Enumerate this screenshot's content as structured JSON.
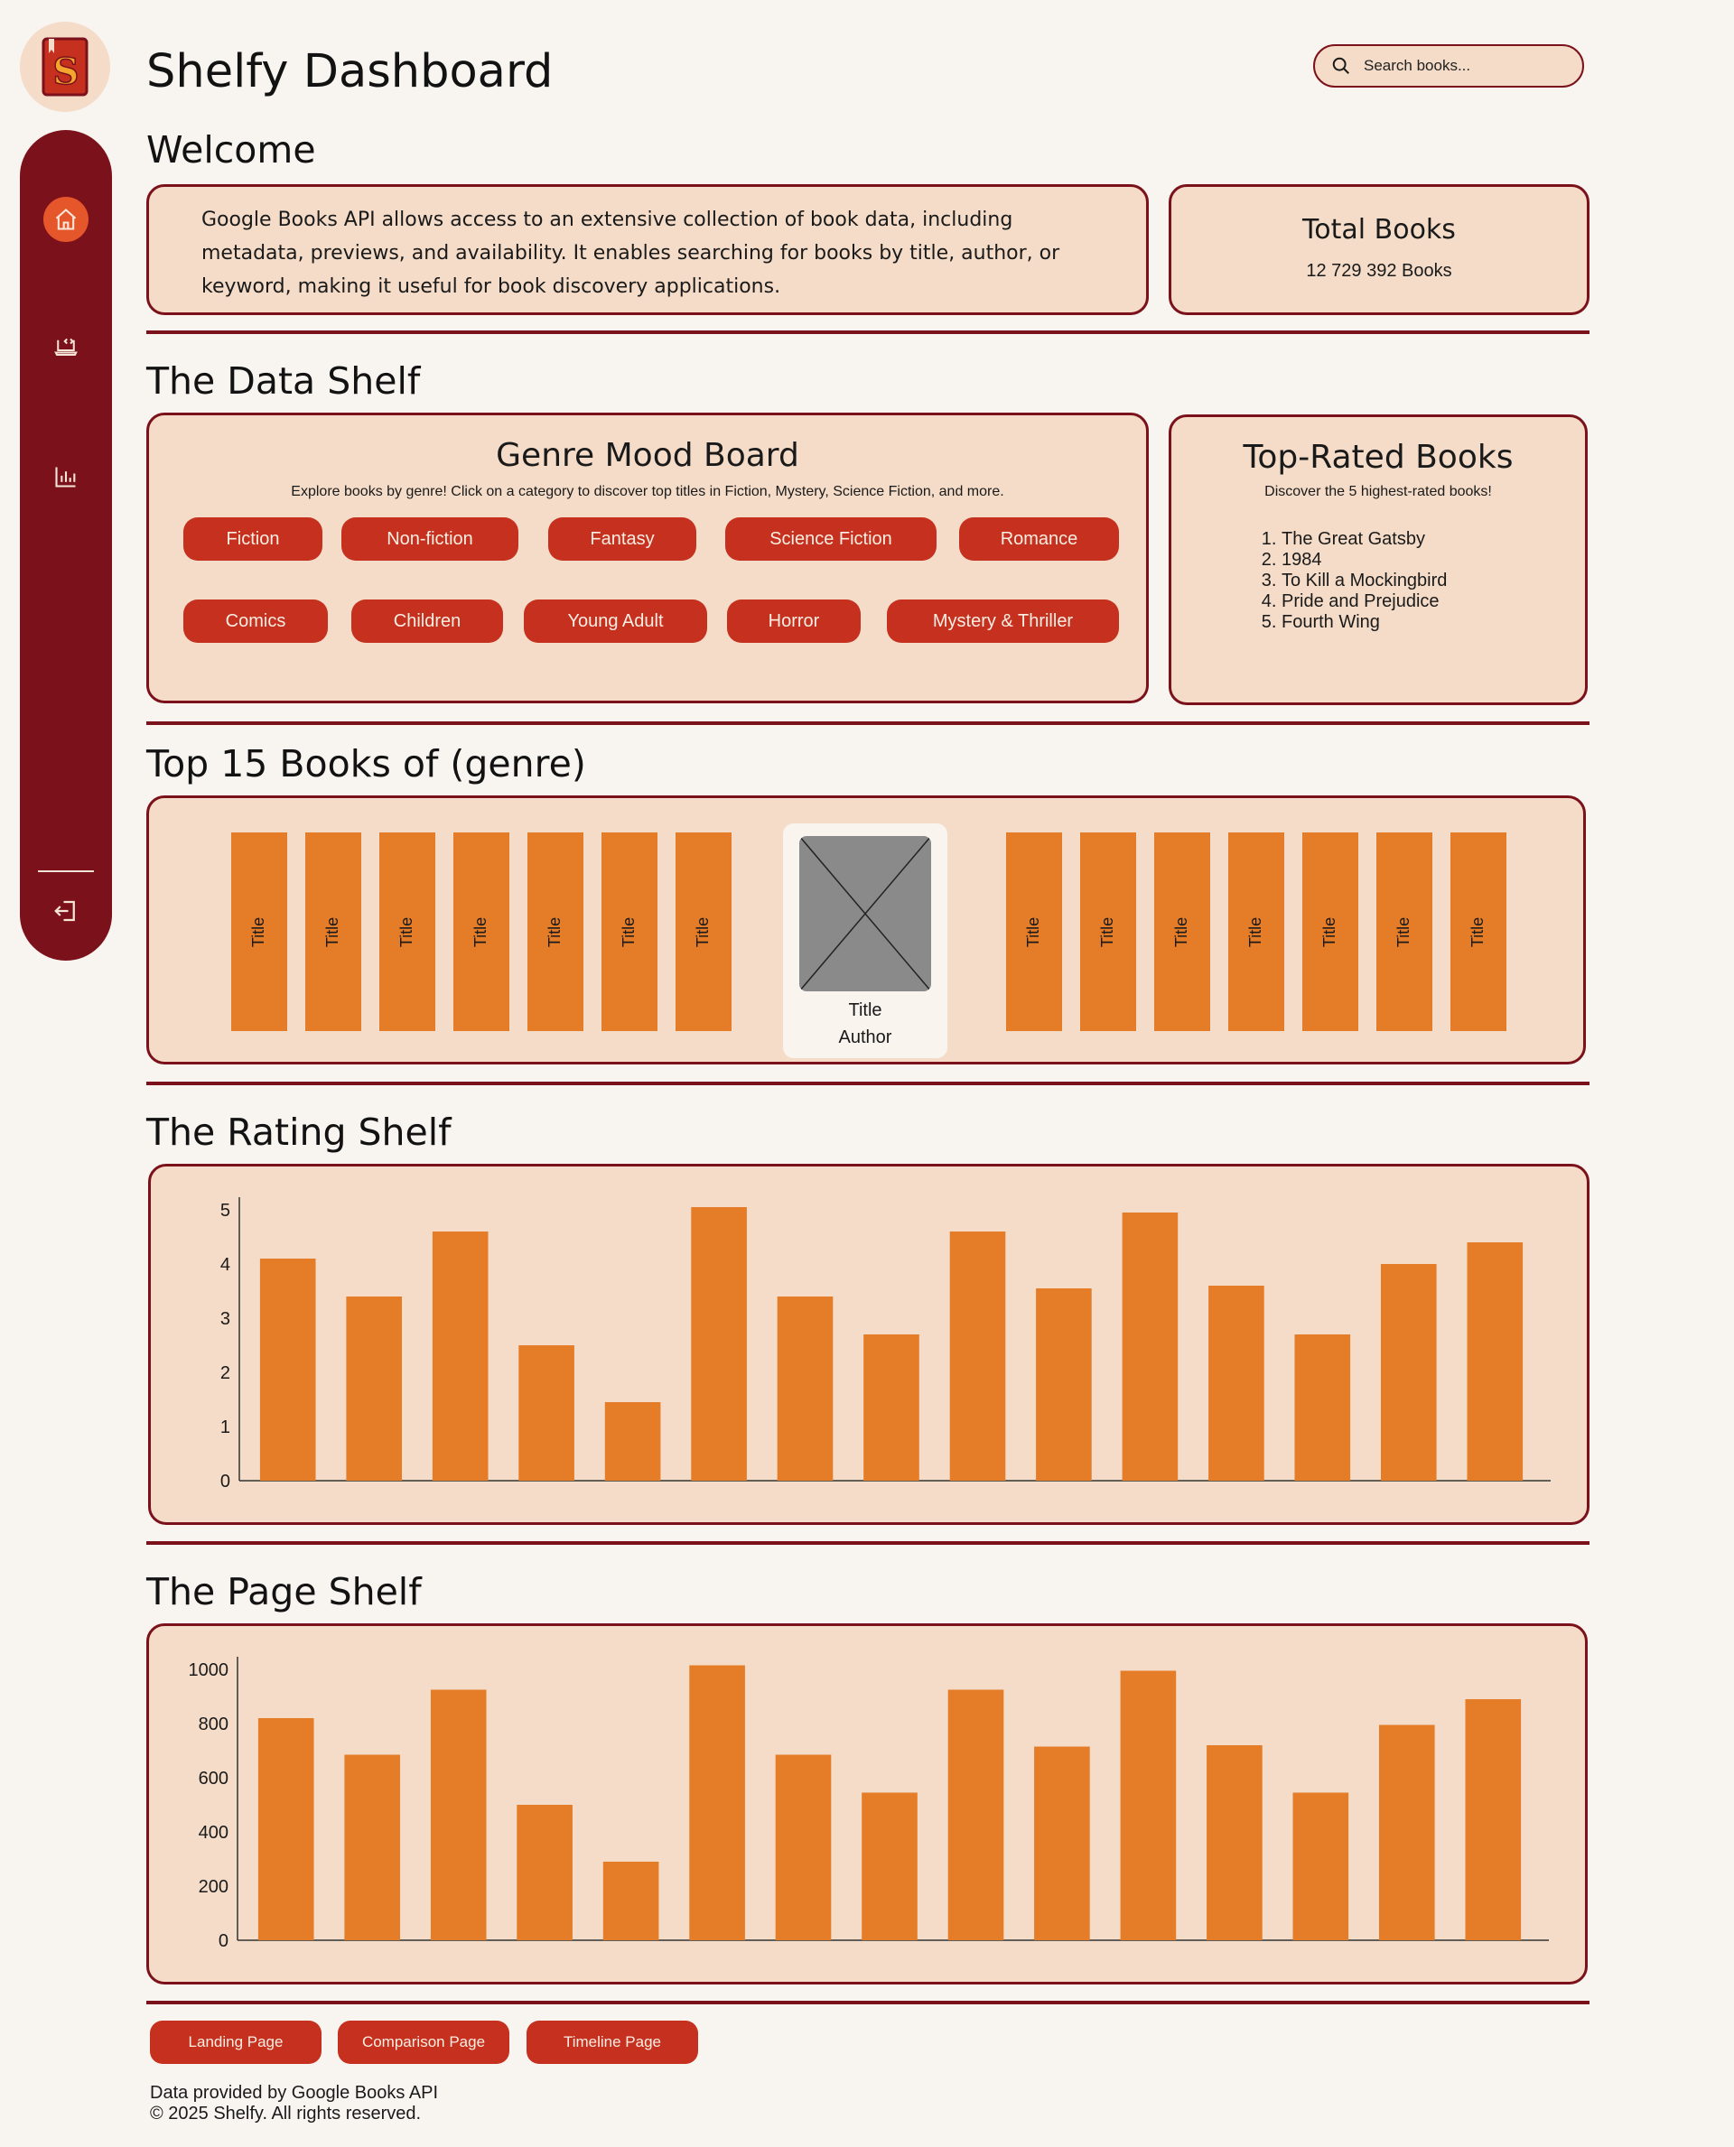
{
  "app": {
    "title": "Shelfy Dashboard",
    "logo_letter": "S",
    "search_placeholder": "Search books..."
  },
  "sidebar": {
    "items": [
      {
        "icon": "home-icon",
        "active": true
      },
      {
        "icon": "laptop-code-icon",
        "active": false
      },
      {
        "icon": "bar-chart-icon",
        "active": false
      }
    ],
    "logout_icon": "logout-icon"
  },
  "welcome": {
    "heading": "Welcome",
    "text": "Google Books API allows access to an extensive collection of book data, including metadata, previews, and availability. It enables searching for books by title, author, or keyword, making it useful for book discovery applications.",
    "total_title": "Total Books",
    "total_value": "12 729 392 Books"
  },
  "data_shelf": {
    "heading": "The Data Shelf",
    "mood_board": {
      "title": "Genre Mood Board",
      "subtitle": "Explore books by genre! Click on a category to discover top titles in Fiction, Mystery, Science Fiction, and more.",
      "genres": [
        "Fiction",
        "Non-fiction",
        "Fantasy",
        "Science Fiction",
        "Romance",
        "Comics",
        "Children",
        "Young Adult",
        "Horror",
        "Mystery & Thriller"
      ]
    },
    "top_rated": {
      "title": "Top-Rated Books",
      "subtitle": "Discover the 5 highest-rated books!",
      "books": [
        "The Great Gatsby",
        "1984",
        "To Kill a Mockingbird",
        "Pride and Prejudice",
        "Fourth Wing"
      ]
    }
  },
  "top15": {
    "heading": "Top 15 Books of (genre)",
    "spine_label": "Title",
    "feature_title": "Title",
    "feature_author": "Author"
  },
  "rating_shelf": {
    "heading": "The Rating Shelf"
  },
  "page_shelf": {
    "heading": "The Page Shelf"
  },
  "footer": {
    "links": [
      "Landing Page",
      "Comparison Page",
      "Timeline Page"
    ],
    "credit": "Data provided by Google Books API",
    "copyright": "© 2025 Shelfy. All rights reserved."
  },
  "colors": {
    "primary": "#7b111b",
    "accent": "#c5301f",
    "bar": "#e57c27",
    "card_bg": "#f4dcc8",
    "page_bg": "#f8f5f1"
  },
  "chart_data": [
    {
      "type": "bar",
      "title": "",
      "xlabel": "",
      "ylabel": "",
      "ylim": [
        0,
        5
      ],
      "yticks": [
        0,
        1,
        2,
        3,
        4,
        5
      ],
      "values": [
        4.1,
        3.4,
        4.6,
        2.5,
        1.45,
        5.05,
        3.4,
        2.7,
        4.6,
        3.55,
        4.95,
        3.6,
        2.7,
        4.0,
        4.4
      ],
      "grid": false
    },
    {
      "type": "bar",
      "title": "",
      "xlabel": "",
      "ylabel": "",
      "ylim": [
        0,
        1000
      ],
      "yticks": [
        0,
        200,
        400,
        600,
        800,
        1000
      ],
      "values": [
        820,
        685,
        925,
        500,
        290,
        1015,
        685,
        545,
        925,
        715,
        995,
        720,
        545,
        795,
        890
      ],
      "grid": false
    }
  ]
}
